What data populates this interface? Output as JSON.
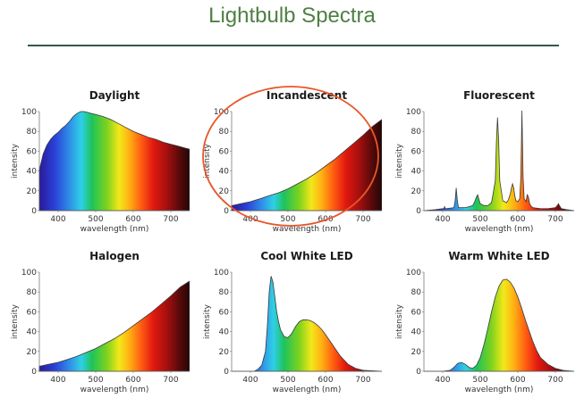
{
  "page": {
    "title": "Lightbulb Spectra"
  },
  "chart_data": [
    {
      "type": "area",
      "title": "Daylight",
      "xlabel": "wavelength (nm)",
      "ylabel": "intensity",
      "xlim": [
        350,
        750
      ],
      "ylim": [
        0,
        100
      ],
      "xticks": [
        400,
        500,
        600,
        700
      ],
      "yticks": [
        0,
        20,
        40,
        60,
        80,
        100
      ],
      "xtick_labels": [
        "400",
        "500",
        "600",
        "700"
      ],
      "ytick_labels": [
        "0",
        "20",
        "40",
        "60",
        "80",
        "100"
      ],
      "fill": "rainbow",
      "annotation": "",
      "series": [
        {
          "x": [
            350,
            360,
            370,
            380,
            390,
            400,
            410,
            420,
            430,
            440,
            450,
            460,
            470,
            480,
            490,
            500,
            520,
            540,
            560,
            580,
            600,
            620,
            640,
            660,
            680,
            700,
            720,
            740,
            750
          ],
          "values": [
            41,
            57,
            66,
            72,
            76,
            79,
            83,
            86,
            90,
            95,
            98,
            100,
            100,
            99,
            98,
            97,
            95,
            92,
            88,
            84,
            80,
            77,
            74,
            72,
            69,
            67,
            65,
            63,
            62
          ]
        }
      ]
    },
    {
      "type": "area",
      "title": "Incandescent",
      "xlabel": "wavelength (nm)",
      "ylabel": "intensity",
      "xlim": [
        350,
        750
      ],
      "ylim": [
        0,
        100
      ],
      "xticks": [
        400,
        500,
        600,
        700
      ],
      "yticks": [
        0,
        20,
        40,
        60,
        80,
        100
      ],
      "xtick_labels": [
        "400",
        "500",
        "600",
        "700"
      ],
      "ytick_labels": [
        "0",
        "20",
        "40",
        "60",
        "80",
        "100"
      ],
      "fill": "rainbow",
      "annotation": "circled",
      "series": [
        {
          "x": [
            350,
            375,
            400,
            425,
            450,
            475,
            500,
            525,
            550,
            575,
            600,
            625,
            650,
            675,
            700,
            725,
            750
          ],
          "values": [
            5,
            7,
            9,
            12,
            15,
            18,
            22,
            27,
            32,
            38,
            45,
            52,
            60,
            68,
            76,
            85,
            92
          ]
        }
      ]
    },
    {
      "type": "area",
      "title": "Fluorescent",
      "xlabel": "wavelength (nm)",
      "ylabel": "intensity",
      "xlim": [
        350,
        750
      ],
      "ylim": [
        0,
        100
      ],
      "xticks": [
        400,
        500,
        600,
        700
      ],
      "yticks": [
        0,
        20,
        40,
        60,
        80,
        100
      ],
      "xtick_labels": [
        "400",
        "500",
        "600",
        "700"
      ],
      "ytick_labels": [
        "0",
        "20",
        "40",
        "60",
        "80",
        "100"
      ],
      "fill": "rainbow",
      "annotation": "",
      "series": [
        {
          "x": [
            350,
            380,
            400,
            403,
            405,
            407,
            410,
            430,
            433,
            436,
            439,
            442,
            460,
            480,
            485,
            490,
            493,
            496,
            500,
            510,
            520,
            530,
            540,
            543,
            546,
            549,
            552,
            560,
            570,
            575,
            580,
            583,
            586,
            589,
            592,
            595,
            600,
            605,
            608,
            611,
            614,
            617,
            622,
            625,
            628,
            631,
            634,
            640,
            660,
            680,
            700,
            705,
            708,
            711,
            716,
            730,
            750
          ],
          "values": [
            0,
            1,
            2,
            2,
            4,
            2,
            2,
            3,
            10,
            23,
            10,
            3,
            3,
            5,
            9,
            14,
            16,
            12,
            7,
            5,
            5,
            8,
            30,
            70,
            94,
            70,
            30,
            10,
            8,
            11,
            17,
            23,
            27,
            23,
            15,
            10,
            9,
            12,
            34,
            101,
            34,
            12,
            9,
            16,
            14,
            8,
            5,
            3,
            2,
            2,
            3,
            5,
            7,
            5,
            2,
            1,
            0
          ]
        }
      ]
    },
    {
      "type": "area",
      "title": "Halogen",
      "xlabel": "wavelength (nm)",
      "ylabel": "intensity",
      "xlim": [
        350,
        750
      ],
      "ylim": [
        0,
        100
      ],
      "xticks": [
        400,
        500,
        600,
        700
      ],
      "yticks": [
        0,
        20,
        40,
        60,
        80,
        100
      ],
      "xtick_labels": [
        "400",
        "500",
        "600",
        "700"
      ],
      "ytick_labels": [
        "0",
        "20",
        "40",
        "60",
        "80",
        "100"
      ],
      "fill": "rainbow",
      "annotation": "",
      "series": [
        {
          "x": [
            350,
            375,
            400,
            425,
            450,
            475,
            500,
            525,
            550,
            575,
            600,
            625,
            650,
            675,
            700,
            725,
            750
          ],
          "values": [
            5,
            7,
            9,
            12,
            15,
            19,
            23,
            28,
            33,
            39,
            46,
            53,
            60,
            68,
            76,
            85,
            91
          ]
        }
      ]
    },
    {
      "type": "area",
      "title": "Cool White LED",
      "xlabel": "wavelength (nm)",
      "ylabel": "intensity",
      "xlim": [
        350,
        750
      ],
      "ylim": [
        0,
        100
      ],
      "xticks": [
        400,
        500,
        600,
        700
      ],
      "yticks": [
        0,
        20,
        40,
        60,
        80,
        100
      ],
      "xtick_labels": [
        "400",
        "500",
        "600",
        "700"
      ],
      "ytick_labels": [
        "0",
        "20",
        "40",
        "60",
        "80",
        "100"
      ],
      "fill": "rainbow",
      "annotation": "",
      "series": [
        {
          "x": [
            350,
            390,
            410,
            420,
            430,
            440,
            445,
            450,
            455,
            460,
            465,
            470,
            475,
            480,
            490,
            500,
            510,
            520,
            530,
            540,
            550,
            560,
            570,
            580,
            590,
            600,
            620,
            640,
            660,
            680,
            700,
            750
          ],
          "values": [
            0,
            0,
            0,
            2,
            6,
            20,
            45,
            80,
            96,
            90,
            75,
            60,
            50,
            42,
            35,
            34,
            38,
            45,
            50,
            52,
            52,
            51,
            49,
            46,
            42,
            37,
            26,
            15,
            7,
            3,
            1,
            0
          ]
        }
      ]
    },
    {
      "type": "area",
      "title": "Warm White LED",
      "xlabel": "wavelength (nm)",
      "ylabel": "intensity",
      "xlim": [
        350,
        750
      ],
      "ylim": [
        0,
        100
      ],
      "xticks": [
        400,
        500,
        600,
        700
      ],
      "yticks": [
        0,
        20,
        40,
        60,
        80,
        100
      ],
      "xtick_labels": [
        "400",
        "500",
        "600",
        "700"
      ],
      "ytick_labels": [
        "0",
        "20",
        "40",
        "60",
        "80",
        "100"
      ],
      "fill": "rainbow",
      "annotation": "",
      "series": [
        {
          "x": [
            350,
            400,
            420,
            430,
            440,
            450,
            460,
            470,
            480,
            490,
            500,
            510,
            520,
            530,
            540,
            550,
            560,
            570,
            580,
            590,
            600,
            610,
            620,
            630,
            640,
            650,
            660,
            680,
            700,
            720,
            750
          ],
          "values": [
            0,
            0,
            1,
            4,
            8,
            9,
            7,
            4,
            3,
            6,
            14,
            27,
            43,
            60,
            75,
            86,
            92,
            93,
            90,
            84,
            75,
            64,
            52,
            41,
            30,
            21,
            14,
            7,
            3,
            1,
            0
          ]
        }
      ]
    }
  ]
}
